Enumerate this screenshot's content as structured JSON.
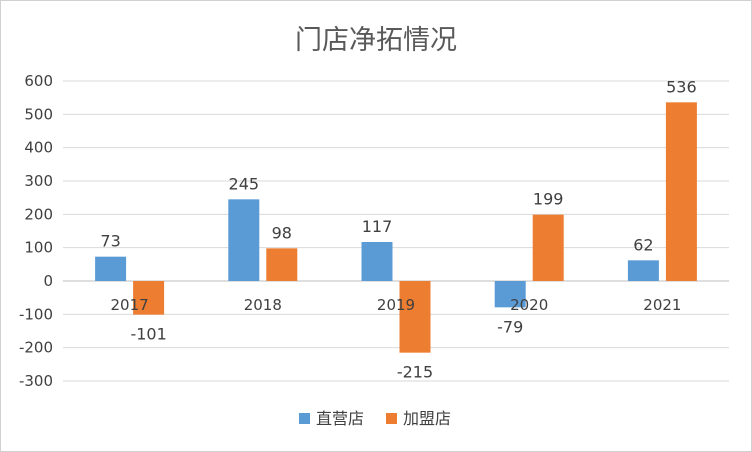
{
  "chart_data": {
    "type": "bar",
    "title": "门店净拓情况",
    "categories": [
      "2017",
      "2018",
      "2019",
      "2020",
      "2021"
    ],
    "series": [
      {
        "name": "直营店",
        "color": "#5b9bd5",
        "values": [
          73,
          245,
          117,
          -79,
          62
        ]
      },
      {
        "name": "加盟店",
        "color": "#ed7d31",
        "values": [
          -101,
          98,
          -215,
          199,
          536
        ]
      }
    ],
    "ylim": [
      -300,
      600
    ],
    "yticks": [
      600,
      500,
      400,
      300,
      200,
      100,
      0,
      -100,
      -200,
      -300
    ],
    "grid": true,
    "legend": "bottom"
  }
}
